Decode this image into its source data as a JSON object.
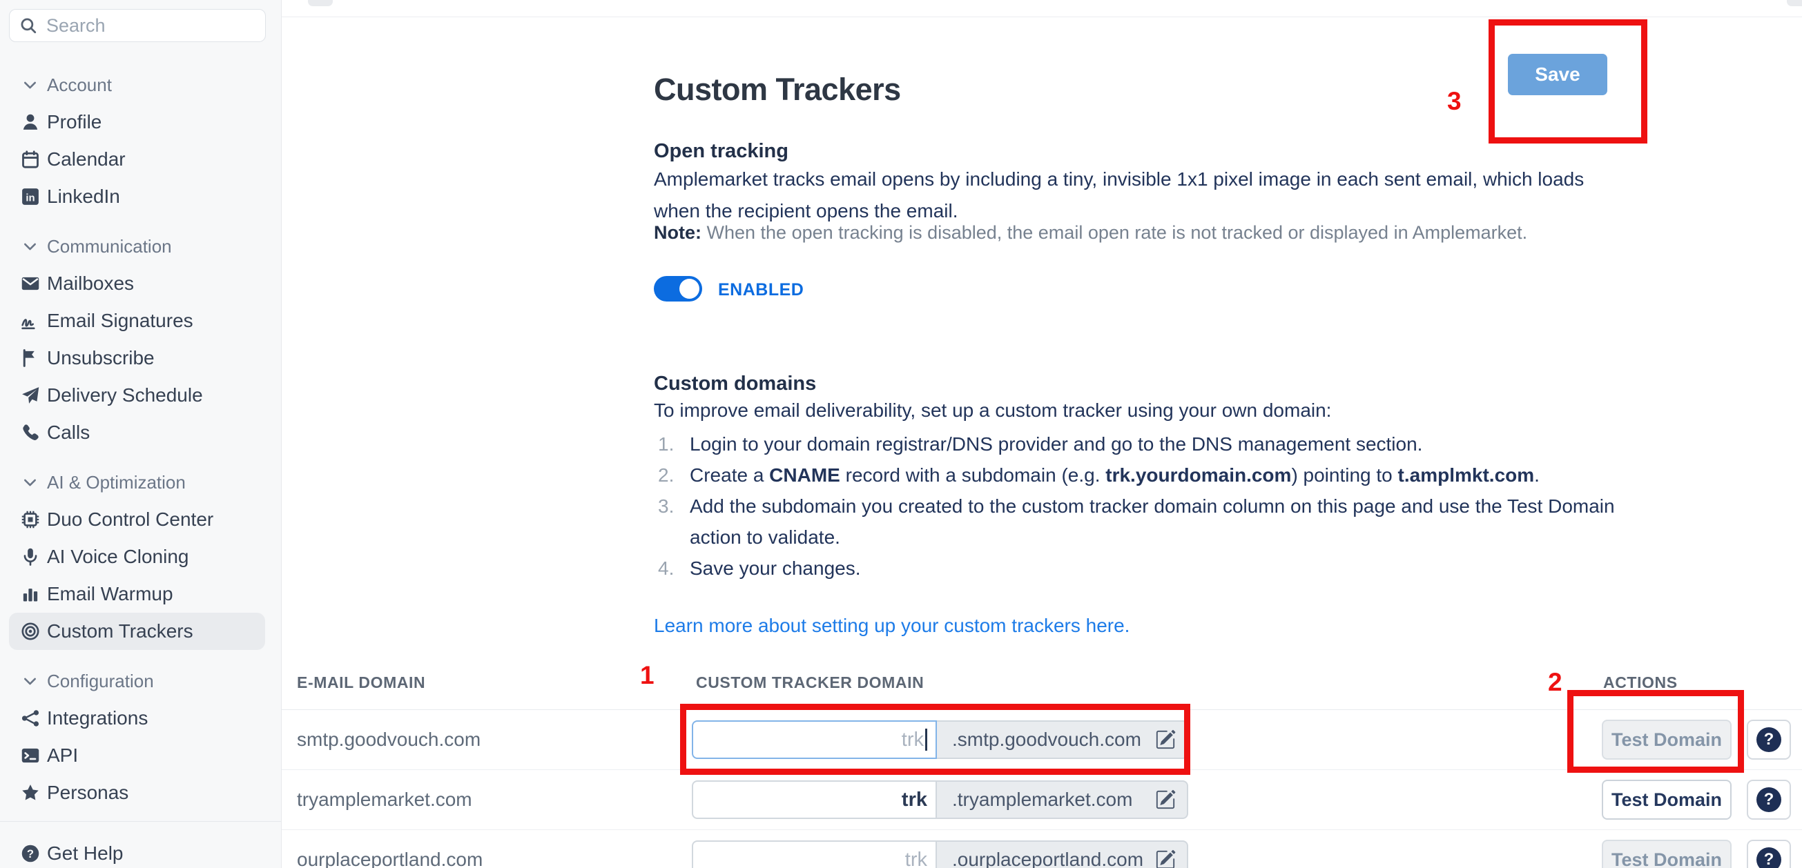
{
  "colors": {
    "accent_blue": "#0c6ce0",
    "link_blue": "#1e7ce8",
    "save_blue": "#6ba3dc",
    "annotation_red": "#ee1111",
    "sidebar_bg": "#f7f8f9",
    "selected_bg": "#e9ebee",
    "suffix_bg": "#e9ecef"
  },
  "sidebar": {
    "search_placeholder": "Search",
    "sections": [
      {
        "label": "Account",
        "items": [
          {
            "label": "Profile",
            "icon": "person"
          },
          {
            "label": "Calendar",
            "icon": "calendar"
          },
          {
            "label": "LinkedIn",
            "icon": "linkedin"
          }
        ]
      },
      {
        "label": "Communication",
        "items": [
          {
            "label": "Mailboxes",
            "icon": "envelope"
          },
          {
            "label": "Email Signatures",
            "icon": "signature"
          },
          {
            "label": "Unsubscribe",
            "icon": "flag"
          },
          {
            "label": "Delivery Schedule",
            "icon": "paper-plane"
          },
          {
            "label": "Calls",
            "icon": "phone"
          }
        ]
      },
      {
        "label": "AI & Optimization",
        "items": [
          {
            "label": "Duo Control Center",
            "icon": "chip"
          },
          {
            "label": "AI Voice Cloning",
            "icon": "microphone"
          },
          {
            "label": "Email Warmup",
            "icon": "bar-chart"
          },
          {
            "label": "Custom Trackers",
            "icon": "target",
            "selected": true
          }
        ]
      },
      {
        "label": "Configuration",
        "items": [
          {
            "label": "Integrations",
            "icon": "network"
          },
          {
            "label": "API",
            "icon": "terminal"
          },
          {
            "label": "Personas",
            "icon": "star"
          }
        ]
      }
    ],
    "footer": {
      "label": "Get Help",
      "icon": "help"
    }
  },
  "header": {
    "save_label": "Save"
  },
  "page": {
    "title": "Custom Trackers",
    "open_tracking": {
      "heading": "Open tracking",
      "description": "Amplemarket tracks email opens by including a tiny, invisible 1x1 pixel image in each sent email, which loads when the recipient opens the email.",
      "note_label": "Note:",
      "note_text": " When the open tracking is disabled, the email open rate is not tracked or displayed in Amplemarket.",
      "toggle_state_label": "ENABLED",
      "toggle_on": true
    },
    "custom_domains": {
      "heading": "Custom domains",
      "intro": "To improve email deliverability, set up a custom tracker using your own domain:",
      "steps": [
        [
          {
            "t": "Login to your domain registrar/DNS provider and go to the DNS management section."
          }
        ],
        [
          {
            "t": "Create a "
          },
          {
            "t": "CNAME",
            "b": true
          },
          {
            "t": " record with a subdomain (e.g. "
          },
          {
            "t": "trk.yourdomain.com",
            "b": true
          },
          {
            "t": ") pointing to "
          },
          {
            "t": "t.amplmkt.com",
            "b": true
          },
          {
            "t": "."
          }
        ],
        [
          {
            "t": "Add the subdomain you created to the custom tracker domain column on this page and use the Test Domain action to validate."
          }
        ],
        [
          {
            "t": "Save your changes."
          }
        ]
      ],
      "link_text": "Learn more about setting up your custom trackers here."
    },
    "table": {
      "columns": [
        "E-MAIL DOMAIN",
        "CUSTOM TRACKER DOMAIN",
        "ACTIONS"
      ],
      "rows": [
        {
          "email_domain": "smtp.goodvouch.com",
          "tracker_value": "",
          "tracker_placeholder": "trk",
          "suffix": ".smtp.goodvouch.com",
          "focused": true,
          "test_label": "Test Domain",
          "test_enabled": false,
          "help_label": "?"
        },
        {
          "email_domain": "tryamplemarket.com",
          "tracker_value": "trk",
          "tracker_placeholder": "trk",
          "suffix": ".tryamplemarket.com",
          "focused": false,
          "test_label": "Test Domain",
          "test_enabled": true,
          "help_label": "?"
        },
        {
          "email_domain": "ourplaceportland.com",
          "tracker_value": "",
          "tracker_placeholder": "trk",
          "suffix": ".ourplaceportland.com",
          "focused": false,
          "test_label": "Test Domain",
          "test_enabled": false,
          "help_label": "?"
        }
      ]
    }
  },
  "annotations": {
    "items": [
      {
        "label": "1"
      },
      {
        "label": "2"
      },
      {
        "label": "3"
      }
    ]
  }
}
